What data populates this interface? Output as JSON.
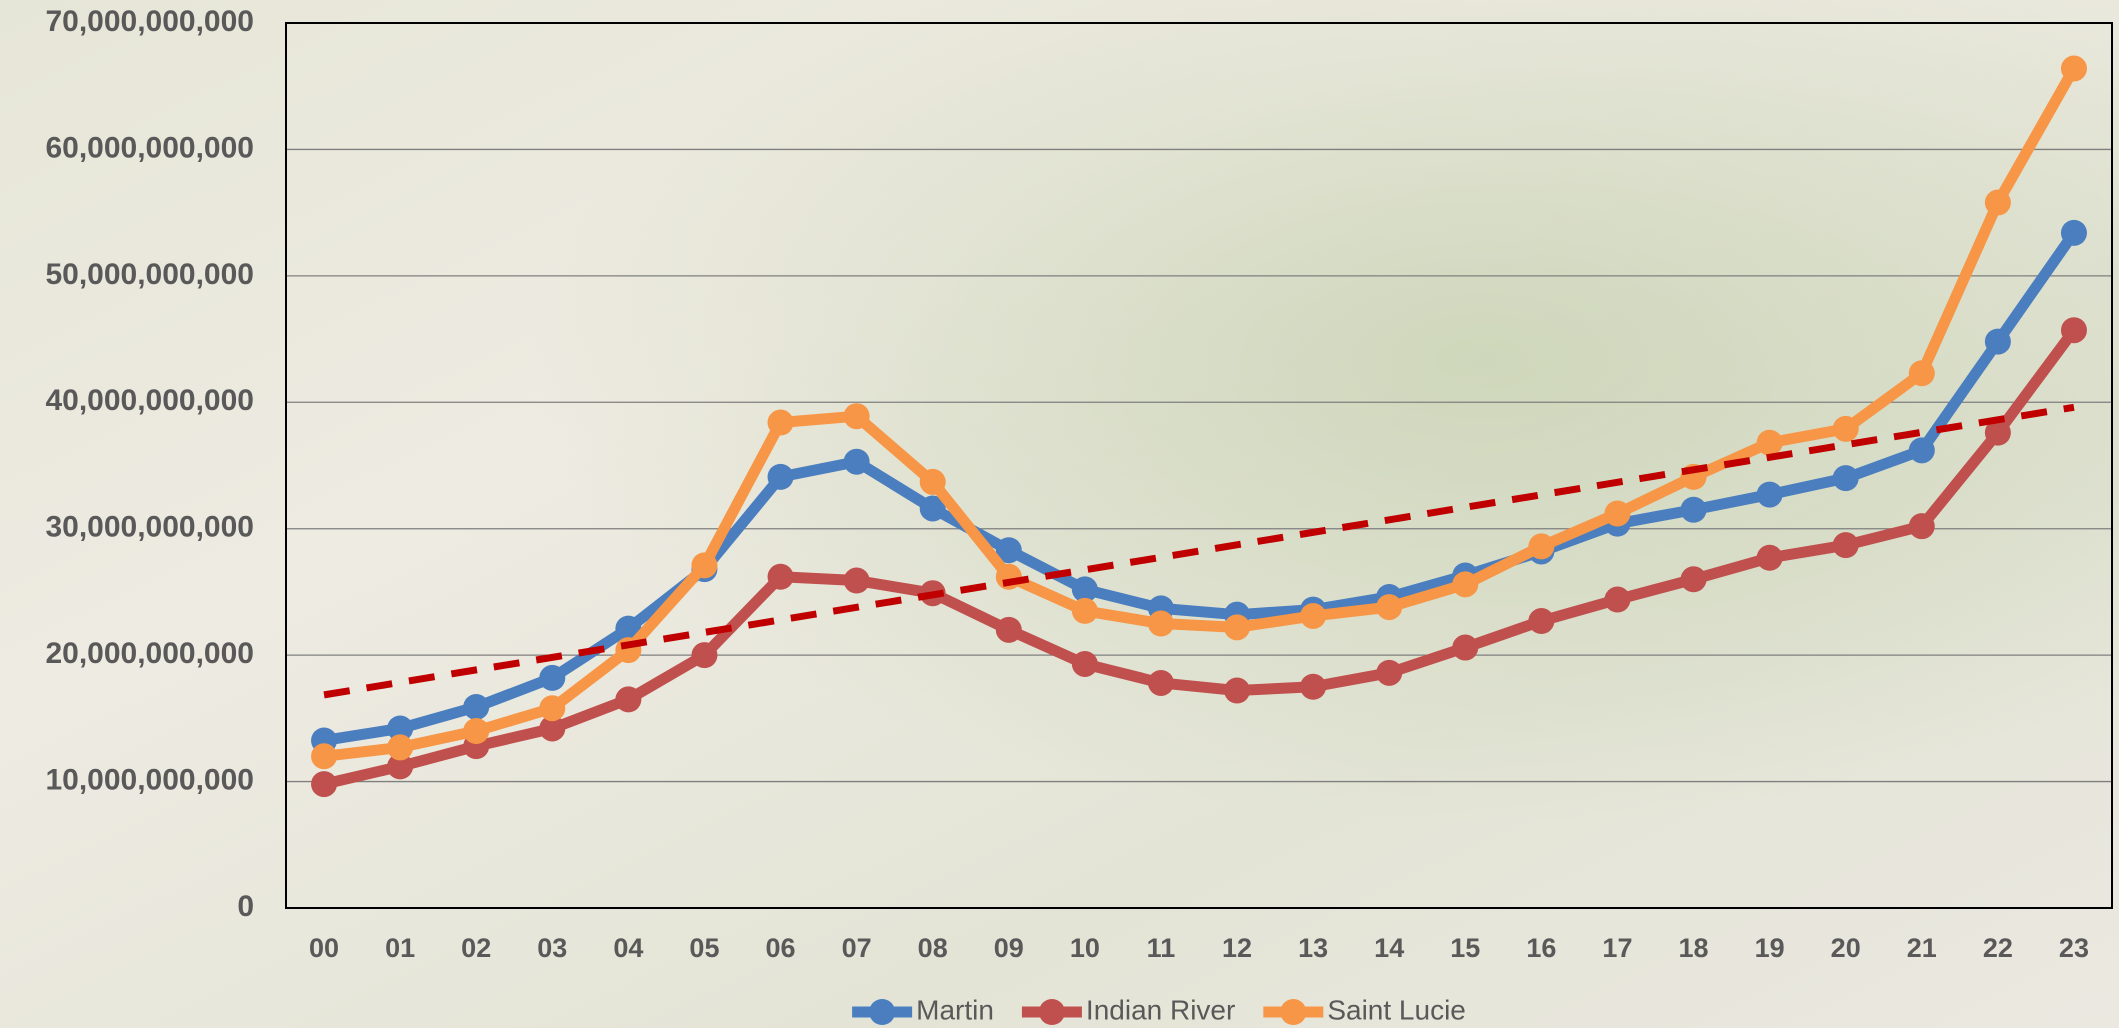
{
  "chart_data": {
    "type": "line",
    "categories": [
      "00",
      "01",
      "02",
      "03",
      "04",
      "05",
      "06",
      "07",
      "08",
      "09",
      "10",
      "11",
      "12",
      "13",
      "14",
      "15",
      "16",
      "17",
      "18",
      "19",
      "20",
      "21",
      "22",
      "23"
    ],
    "series": [
      {
        "name": "Martin",
        "color": "#4a7ebf",
        "values": [
          13250000000,
          14200000000,
          15900000000,
          18200000000,
          22100000000,
          26800000000,
          34100000000,
          35300000000,
          31600000000,
          28300000000,
          25200000000,
          23700000000,
          23200000000,
          23600000000,
          24600000000,
          26300000000,
          28200000000,
          30400000000,
          31500000000,
          32700000000,
          34000000000,
          36200000000,
          44800000000,
          53400000000
        ]
      },
      {
        "name": "Indian River",
        "color": "#c0504d",
        "values": [
          9800000000,
          11200000000,
          12800000000,
          14200000000,
          16500000000,
          20000000000,
          26200000000,
          25900000000,
          24900000000,
          22000000000,
          19300000000,
          17800000000,
          17200000000,
          17500000000,
          18600000000,
          20600000000,
          22700000000,
          24400000000,
          26000000000,
          27700000000,
          28700000000,
          30200000000,
          37600000000,
          45700000000
        ]
      },
      {
        "name": "Saint Lucie",
        "color": "#f79646",
        "values": [
          12000000000,
          12700000000,
          14000000000,
          15800000000,
          20400000000,
          27100000000,
          38400000000,
          38900000000,
          33700000000,
          26200000000,
          23500000000,
          22500000000,
          22200000000,
          23100000000,
          23800000000,
          25600000000,
          28600000000,
          31200000000,
          34100000000,
          36800000000,
          37900000000,
          42300000000,
          55800000000,
          66400000000
        ]
      }
    ],
    "trendline": {
      "series": 0,
      "color": "#c00000"
    },
    "ylim": [
      0,
      70000000000
    ],
    "yticks": [
      0,
      {
        "value": 10000000000,
        "label": "10,000,000,000"
      },
      {
        "value": 20000000000,
        "label": "20,000,000,000"
      },
      {
        "value": 30000000000,
        "label": "30,000,000,000"
      },
      {
        "value": 40000000000,
        "label": "40,000,000,000"
      },
      {
        "value": 50000000000,
        "label": "50,000,000,000"
      },
      {
        "value": 60000000000,
        "label": "60,000,000,000"
      },
      {
        "value": 70000000000,
        "label": "70,000,000,000"
      }
    ],
    "grid": true,
    "legend": "bottom"
  }
}
